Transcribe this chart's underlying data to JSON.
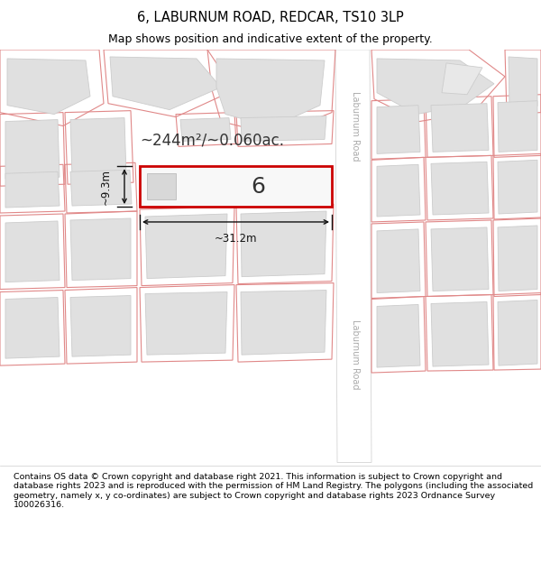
{
  "title": "6, LABURNUM ROAD, REDCAR, TS10 3LP",
  "subtitle": "Map shows position and indicative extent of the property.",
  "footer": "Contains OS data © Crown copyright and database right 2021. This information is subject to Crown copyright and database rights 2023 and is reproduced with the permission of HM Land Registry. The polygons (including the associated geometry, namely x, y co-ordinates) are subject to Crown copyright and database rights 2023 Ordnance Survey 100026316.",
  "road_label": "Laburnum Road",
  "property_label": "6",
  "area_label": "~244m²/~0.060ac.",
  "dim_width": "~31.2m",
  "dim_height": "~9.3m",
  "title_fontsize": 10.5,
  "subtitle_fontsize": 9,
  "footer_fontsize": 6.8,
  "map_bg": "#f2f2f2",
  "road_fill": "#ffffff",
  "plot_edge": "#e08888",
  "building_fill": "#e0e0e0",
  "building_edge": "#cccccc",
  "highlight_edge": "#cc0000",
  "highlight_fill": "#f8f8f8",
  "dim_color": "#111111",
  "road_label_color": "#aaaaaa",
  "area_text_color": "#333333",
  "prop_num_color": "#333333"
}
